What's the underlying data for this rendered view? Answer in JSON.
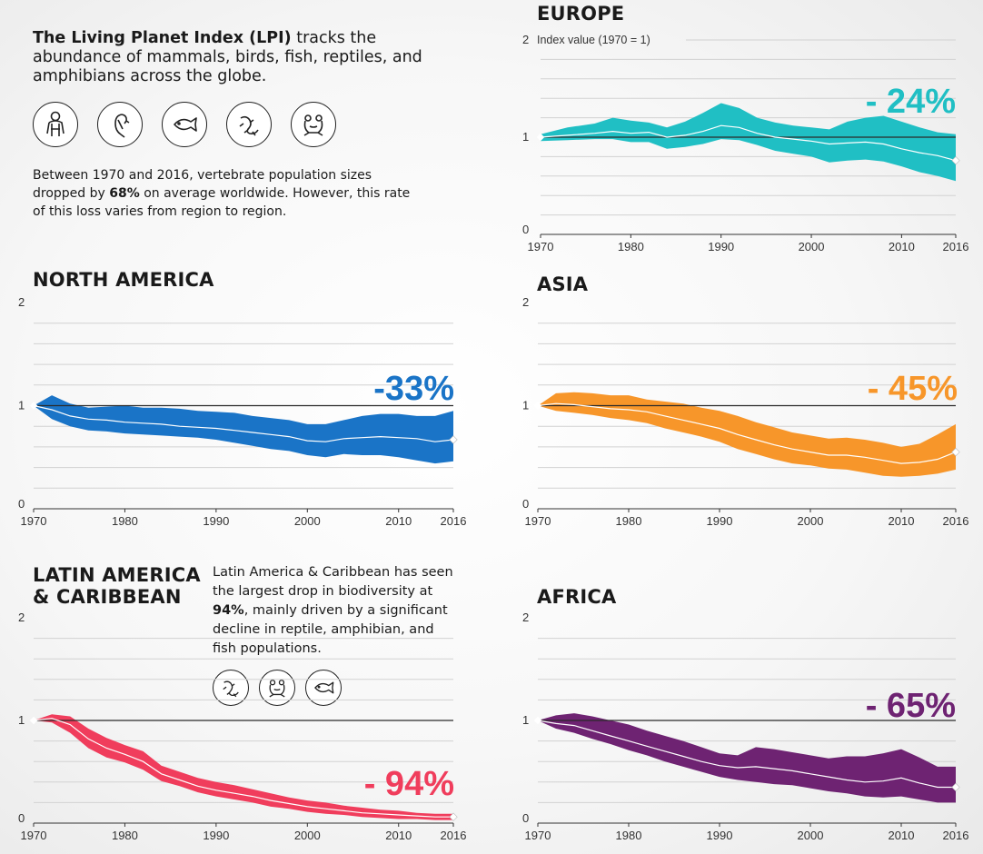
{
  "intro": {
    "heading_bold": "The Living Planet Index (LPI)",
    "heading_rest": " tracks the abundance of mammals, birds, fish, reptiles, and amphibians across the globe.",
    "icons": [
      "gorilla-icon",
      "bird-icon",
      "fish-icon",
      "lizard-icon",
      "frog-icon"
    ],
    "stats_pre": "Between 1970 and 2016, vertebrate population sizes dropped by ",
    "stats_bold": "68%",
    "stats_post": " on average worldwide. However, this rate of this loss varies from region to region."
  },
  "latam_note": {
    "pre": "Latin America & Caribbean has seen the largest drop in biodiversity at ",
    "bold": "94%",
    "post": ", mainly driven by a significant decline in reptile, amphibian, and fish populations.",
    "icons": [
      "lizard-icon",
      "frog-icon",
      "fish-icon"
    ]
  },
  "chart_data": [
    {
      "type": "area",
      "region": "europe",
      "title": "EUROPE",
      "ylabel": "Index value (1970 = 1)",
      "change_label": "- 24%",
      "color": "#20bfc4",
      "x": [
        1970,
        1973,
        1976,
        1978,
        1980,
        1982,
        1984,
        1986,
        1988,
        1990,
        1992,
        1994,
        1996,
        1998,
        2000,
        2002,
        2004,
        2006,
        2008,
        2010,
        2012,
        2014,
        2016
      ],
      "values": [
        1.0,
        1.02,
        1.04,
        1.06,
        1.04,
        1.05,
        1.0,
        1.02,
        1.06,
        1.12,
        1.1,
        1.04,
        1.0,
        0.98,
        0.96,
        0.93,
        0.94,
        0.95,
        0.93,
        0.88,
        0.84,
        0.81,
        0.76
      ],
      "upper": [
        1.03,
        1.1,
        1.14,
        1.2,
        1.17,
        1.15,
        1.1,
        1.16,
        1.25,
        1.35,
        1.3,
        1.2,
        1.15,
        1.12,
        1.1,
        1.08,
        1.16,
        1.2,
        1.22,
        1.16,
        1.1,
        1.05,
        1.03
      ],
      "lower": [
        0.96,
        0.97,
        0.98,
        0.98,
        0.95,
        0.95,
        0.88,
        0.9,
        0.93,
        0.98,
        0.97,
        0.92,
        0.86,
        0.83,
        0.8,
        0.74,
        0.76,
        0.77,
        0.75,
        0.7,
        0.64,
        0.6,
        0.55
      ],
      "end_value": 0.76,
      "x_ticks": [
        1970,
        1980,
        1990,
        2000,
        2010,
        2016
      ],
      "y_ticks": [
        0,
        1,
        2
      ],
      "ylim": [
        0,
        2
      ]
    },
    {
      "type": "area",
      "region": "north-america",
      "title": "NORTH AMERICA",
      "change_label": "-33%",
      "color": "#1a74c7",
      "x": [
        1970,
        1972,
        1974,
        1976,
        1978,
        1980,
        1982,
        1984,
        1986,
        1988,
        1990,
        1992,
        1994,
        1996,
        1998,
        2000,
        2002,
        2004,
        2006,
        2008,
        2010,
        2012,
        2014,
        2016
      ],
      "values": [
        1.0,
        0.96,
        0.9,
        0.87,
        0.86,
        0.84,
        0.83,
        0.82,
        0.8,
        0.79,
        0.78,
        0.76,
        0.74,
        0.72,
        0.7,
        0.66,
        0.65,
        0.68,
        0.69,
        0.7,
        0.69,
        0.68,
        0.65,
        0.67
      ],
      "upper": [
        1.0,
        1.1,
        1.02,
        0.98,
        0.99,
        1.0,
        0.98,
        0.98,
        0.97,
        0.95,
        0.94,
        0.93,
        0.9,
        0.88,
        0.86,
        0.82,
        0.82,
        0.86,
        0.9,
        0.92,
        0.92,
        0.9,
        0.9,
        0.95
      ],
      "lower": [
        1.0,
        0.87,
        0.8,
        0.76,
        0.75,
        0.73,
        0.72,
        0.71,
        0.7,
        0.69,
        0.67,
        0.64,
        0.61,
        0.58,
        0.56,
        0.52,
        0.5,
        0.53,
        0.52,
        0.52,
        0.5,
        0.47,
        0.44,
        0.46
      ],
      "end_value": 0.67,
      "x_ticks": [
        1970,
        1980,
        1990,
        2000,
        2010,
        2016
      ],
      "y_ticks": [
        0,
        1,
        2
      ],
      "ylim": [
        0,
        2
      ]
    },
    {
      "type": "area",
      "region": "asia",
      "title": "ASIA",
      "change_label": "- 45%",
      "color": "#f7962a",
      "x": [
        1970,
        1972,
        1974,
        1976,
        1978,
        1980,
        1982,
        1984,
        1986,
        1988,
        1990,
        1992,
        1994,
        1996,
        1998,
        2000,
        2002,
        2004,
        2006,
        2008,
        2010,
        2012,
        2014,
        2016
      ],
      "values": [
        1.0,
        1.02,
        1.01,
        0.99,
        0.97,
        0.96,
        0.94,
        0.9,
        0.86,
        0.82,
        0.78,
        0.72,
        0.67,
        0.62,
        0.58,
        0.55,
        0.52,
        0.52,
        0.5,
        0.47,
        0.44,
        0.45,
        0.48,
        0.55
      ],
      "upper": [
        1.0,
        1.12,
        1.13,
        1.12,
        1.1,
        1.1,
        1.06,
        1.04,
        1.02,
        0.98,
        0.95,
        0.9,
        0.84,
        0.79,
        0.74,
        0.71,
        0.68,
        0.69,
        0.67,
        0.64,
        0.6,
        0.63,
        0.72,
        0.82
      ],
      "lower": [
        1.0,
        0.95,
        0.93,
        0.91,
        0.88,
        0.86,
        0.83,
        0.78,
        0.74,
        0.7,
        0.65,
        0.58,
        0.53,
        0.48,
        0.44,
        0.42,
        0.39,
        0.38,
        0.35,
        0.32,
        0.31,
        0.32,
        0.34,
        0.38
      ],
      "end_value": 0.55,
      "x_ticks": [
        1970,
        1980,
        1990,
        2000,
        2010,
        2016
      ],
      "y_ticks": [
        0,
        1,
        2
      ],
      "ylim": [
        0,
        2
      ]
    },
    {
      "type": "area",
      "region": "latin-america",
      "title": "LATIN AMERICA & CARIBBEAN",
      "change_label": "- 94%",
      "color": "#f03d5c",
      "x": [
        1970,
        1972,
        1974,
        1976,
        1978,
        1980,
        1982,
        1984,
        1986,
        1988,
        1990,
        1992,
        1994,
        1996,
        1998,
        2000,
        2002,
        2004,
        2006,
        2008,
        2010,
        2012,
        2014,
        2016
      ],
      "values": [
        1.0,
        1.02,
        0.96,
        0.82,
        0.73,
        0.67,
        0.6,
        0.48,
        0.42,
        0.36,
        0.32,
        0.29,
        0.26,
        0.22,
        0.19,
        0.16,
        0.14,
        0.12,
        0.1,
        0.09,
        0.08,
        0.07,
        0.06,
        0.06
      ],
      "upper": [
        1.0,
        1.06,
        1.04,
        0.92,
        0.83,
        0.76,
        0.7,
        0.56,
        0.5,
        0.44,
        0.4,
        0.37,
        0.33,
        0.29,
        0.25,
        0.22,
        0.2,
        0.17,
        0.15,
        0.13,
        0.12,
        0.1,
        0.09,
        0.09
      ],
      "lower": [
        1.0,
        0.98,
        0.88,
        0.73,
        0.64,
        0.59,
        0.52,
        0.41,
        0.36,
        0.3,
        0.26,
        0.23,
        0.2,
        0.16,
        0.14,
        0.11,
        0.09,
        0.08,
        0.06,
        0.05,
        0.04,
        0.04,
        0.03,
        0.03
      ],
      "end_value": 0.06,
      "x_ticks": [
        1970,
        1980,
        1990,
        2000,
        2010,
        2016
      ],
      "y_ticks": [
        0,
        1,
        2
      ],
      "ylim": [
        0,
        2
      ]
    },
    {
      "type": "area",
      "region": "africa",
      "title": "AFRICA",
      "change_label": "- 65%",
      "color": "#6e2372",
      "x": [
        1970,
        1972,
        1974,
        1976,
        1978,
        1980,
        1982,
        1984,
        1986,
        1988,
        1990,
        1992,
        1994,
        1996,
        1998,
        2000,
        2002,
        2004,
        2006,
        2008,
        2010,
        2012,
        2014,
        2016
      ],
      "values": [
        1.0,
        0.97,
        0.95,
        0.9,
        0.85,
        0.8,
        0.75,
        0.7,
        0.65,
        0.6,
        0.56,
        0.54,
        0.55,
        0.53,
        0.51,
        0.48,
        0.45,
        0.42,
        0.4,
        0.41,
        0.44,
        0.39,
        0.35,
        0.35
      ],
      "upper": [
        1.0,
        1.05,
        1.07,
        1.04,
        1.0,
        0.96,
        0.9,
        0.85,
        0.8,
        0.74,
        0.68,
        0.66,
        0.74,
        0.72,
        0.69,
        0.66,
        0.63,
        0.65,
        0.65,
        0.68,
        0.72,
        0.64,
        0.55,
        0.55
      ],
      "lower": [
        1.0,
        0.92,
        0.88,
        0.82,
        0.77,
        0.71,
        0.66,
        0.6,
        0.55,
        0.5,
        0.45,
        0.42,
        0.4,
        0.38,
        0.37,
        0.34,
        0.31,
        0.29,
        0.26,
        0.25,
        0.26,
        0.23,
        0.2,
        0.2
      ],
      "end_value": 0.35,
      "x_ticks": [
        1970,
        1980,
        1990,
        2000,
        2010,
        2016
      ],
      "y_ticks": [
        0,
        1,
        2
      ],
      "ylim": [
        0,
        2
      ]
    }
  ]
}
